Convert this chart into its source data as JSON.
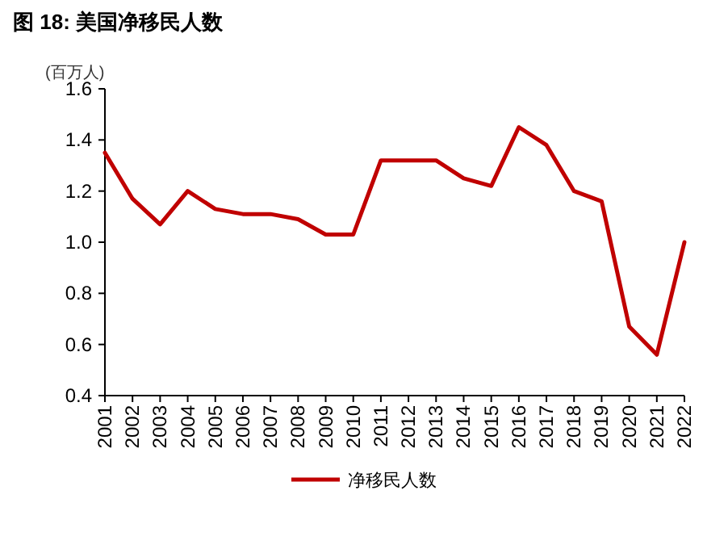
{
  "chart_data": {
    "type": "line",
    "title": "图 18: 美国净移民人数",
    "ylabel": "(百万人)",
    "categories": [
      "2001",
      "2002",
      "2003",
      "2004",
      "2005",
      "2006",
      "2007",
      "2008",
      "2009",
      "2010",
      "2011",
      "2012",
      "2013",
      "2014",
      "2015",
      "2016",
      "2017",
      "2018",
      "2019",
      "2020",
      "2021",
      "2022"
    ],
    "series": [
      {
        "name": "净移民人数",
        "color": "#c00000",
        "values": [
          1.35,
          1.17,
          1.07,
          1.2,
          1.13,
          1.11,
          1.11,
          1.09,
          1.03,
          1.03,
          1.32,
          1.32,
          1.32,
          1.25,
          1.22,
          1.45,
          1.38,
          1.2,
          1.16,
          0.67,
          0.56,
          1.0
        ]
      }
    ],
    "ylim": [
      0.4,
      1.6
    ],
    "yticks": [
      {
        "value": 0.4,
        "label": "0.4"
      },
      {
        "value": 0.6,
        "label": "0.6"
      },
      {
        "value": 0.8,
        "label": "0.8"
      },
      {
        "value": 1.0,
        "label": "1.0"
      },
      {
        "value": 1.2,
        "label": "1.2"
      },
      {
        "value": 1.4,
        "label": "1.4"
      },
      {
        "value": 1.6,
        "label": "1.6"
      }
    ],
    "grid": false,
    "legend": "bottom",
    "marker": "none",
    "line_style": "solid"
  }
}
